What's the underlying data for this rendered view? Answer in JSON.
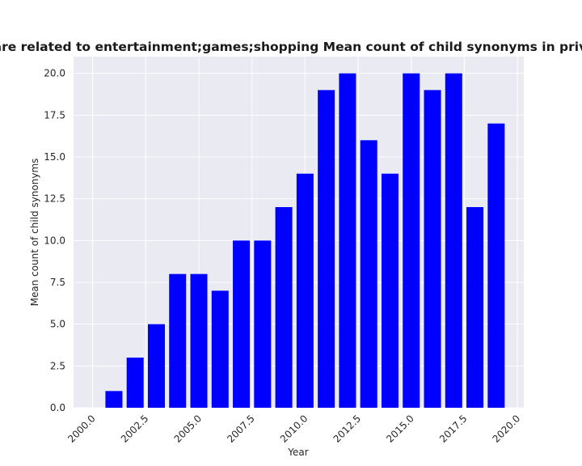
{
  "chart_data": {
    "type": "bar",
    "title": "Categories are related to entertainment;games;shopping Mean count of child synonyms in privacy policies",
    "xlabel": "Year",
    "ylabel": "Mean count of child synonyms",
    "x": [
      2001,
      2002,
      2003,
      2004,
      2005,
      2006,
      2007,
      2008,
      2009,
      2010,
      2011,
      2012,
      2013,
      2014,
      2015,
      2016,
      2017,
      2018,
      2019
    ],
    "values": [
      1,
      3,
      5,
      8,
      8,
      7,
      10,
      10,
      12,
      14,
      19,
      20,
      16,
      14,
      20,
      19,
      20,
      12,
      17
    ],
    "xlim": [
      1999.1,
      2020.3
    ],
    "ylim": [
      0,
      21
    ],
    "xticks": [
      "2000.0",
      "2002.5",
      "2005.0",
      "2007.5",
      "2010.0",
      "2012.5",
      "2015.0",
      "2017.5",
      "2020.0"
    ],
    "yticks": [
      "0.0",
      "2.5",
      "5.0",
      "7.5",
      "10.0",
      "12.5",
      "15.0",
      "17.5",
      "20.0"
    ],
    "bar_color": "#0000ff",
    "background": "#eaeaf2",
    "grid": true
  }
}
